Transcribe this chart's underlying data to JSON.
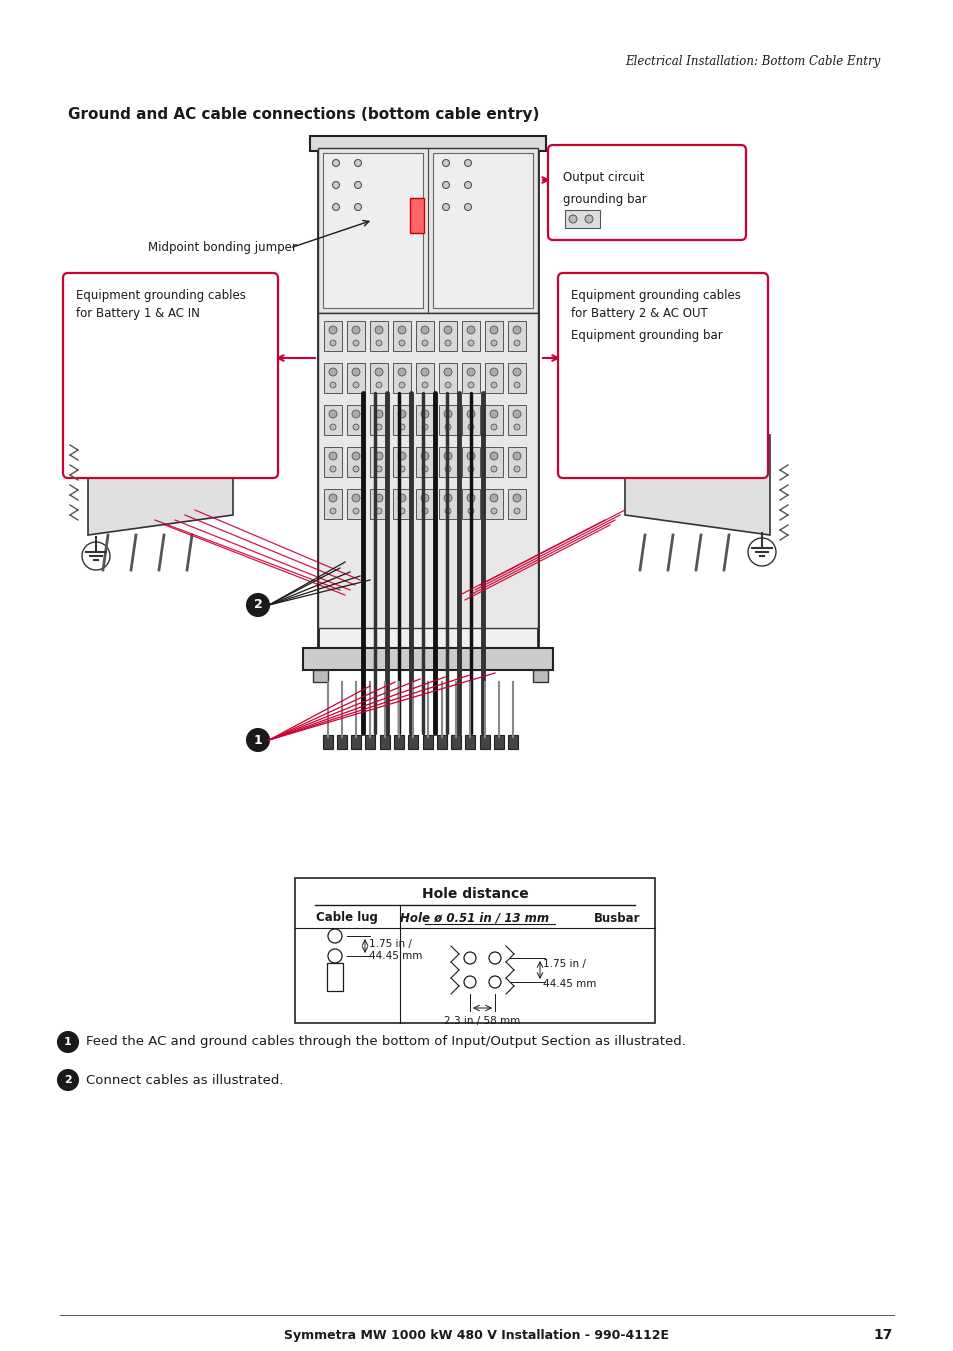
{
  "page_width": 9.54,
  "page_height": 13.51,
  "dpi": 100,
  "bg_color": "#ffffff",
  "dark": "#1a1a1a",
  "gray1": "#cccccc",
  "gray2": "#e8e8e8",
  "gray3": "#555555",
  "red": "#cc0033",
  "header": "Electrical Installation: Bottom Cable Entry",
  "title": "Ground and AC cable connections (bottom cable entry)",
  "footer_text": "Symmetra MW 1000 kW 480 V Installation - 990-4112E",
  "footer_page": "17",
  "label_midpoint": "Midpoint bonding jumper",
  "label_out_circ1": "Output circuit",
  "label_out_circ2": "grounding bar",
  "label_left1": "Equipment grounding cables",
  "label_left2": "for Battery 1 & AC IN",
  "label_right1": "Equipment grounding cables",
  "label_right2": "for Battery 2 & AC OUT",
  "label_gnd_bar": "Equipment grounding bar",
  "step1": "Feed the AC and ground cables through the bottom of Input/Output Section as illustrated.",
  "step2": "Connect cables as illustrated.",
  "tbl_title": "Hole distance",
  "tbl_c1": "Cable lug",
  "tbl_c2": "Hole ø 0.51 in / 13 mm",
  "tbl_c3": "Busbar",
  "tbl_v1a": "1.75 in /",
  "tbl_v1b": "44.45 mm",
  "tbl_v2a": "1.75 in /",
  "tbl_v2b": "44.45 mm",
  "tbl_v3": "2.3 in / 58 mm"
}
